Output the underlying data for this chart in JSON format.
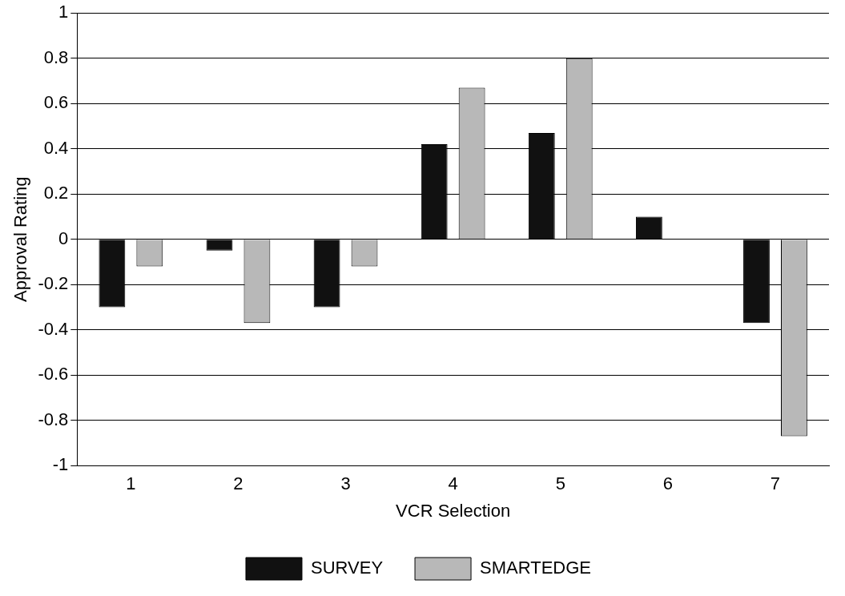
{
  "chart_data": {
    "type": "bar",
    "xlabel": "VCR Selection",
    "ylabel": "Approval Rating",
    "categories": [
      "1",
      "2",
      "3",
      "4",
      "5",
      "6",
      "7"
    ],
    "series": [
      {
        "name": "SURVEY",
        "color": "#111111",
        "values": [
          -0.3,
          -0.05,
          -0.3,
          0.42,
          0.47,
          0.1,
          -0.37
        ]
      },
      {
        "name": "SMARTEDGE",
        "color": "#b8b8b8",
        "values": [
          -0.12,
          -0.37,
          -0.12,
          0.67,
          0.8,
          0,
          -0.87
        ]
      }
    ],
    "ylim": [
      -1,
      1
    ],
    "yticks": [
      -1,
      -0.8,
      -0.6,
      -0.4,
      -0.2,
      0,
      0.2,
      0.4,
      0.6,
      0.8,
      1
    ],
    "grid": "y",
    "legend": "bottom"
  }
}
